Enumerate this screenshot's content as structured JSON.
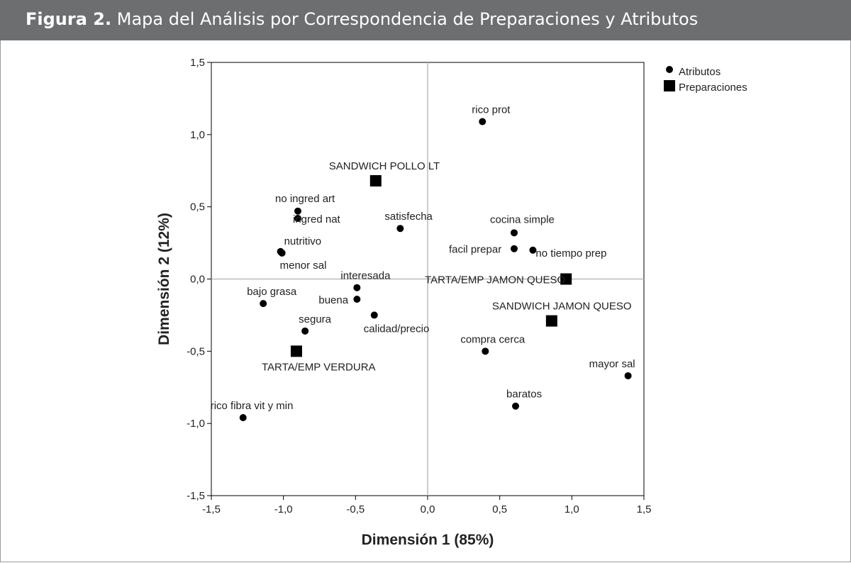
{
  "figure": {
    "label": "Figura 2.",
    "title": "Mapa del Análisis por Correspondencia de Preparaciones y Atributos"
  },
  "colors": {
    "banner": "#6d6e70",
    "marker": "#000000",
    "refline": "#b0b0b0"
  },
  "chart_data": {
    "type": "scatter",
    "xlabel": "Dimensión 1 (85%)",
    "ylabel": "Dimensión 2 (12%)",
    "xlim": [
      -1.5,
      1.5
    ],
    "ylim": [
      -1.5,
      1.5
    ],
    "xticks": [
      -1.5,
      -1.0,
      -0.5,
      0.0,
      0.5,
      1.0,
      1.5
    ],
    "yticks": [
      -1.5,
      -1.0,
      -0.5,
      0.0,
      0.5,
      1.0,
      1.5
    ],
    "xtick_labels": [
      "-1,5",
      "-1,0",
      "-0,5",
      "0,0",
      "0,5",
      "1,0",
      "1,5"
    ],
    "ytick_labels": [
      "-1,5",
      "-1,0",
      "-0,5",
      "0,0",
      "0,5",
      "1,0",
      "1,5"
    ],
    "reference_lines": {
      "x": 0,
      "y": 0
    },
    "legend": {
      "position": "top-right",
      "entries": [
        "Atributos",
        "Preparaciones"
      ]
    },
    "series": [
      {
        "name": "Atributos",
        "marker": "circle",
        "points": [
          {
            "label": "rico prot",
            "x": 0.38,
            "y": 1.09
          },
          {
            "label": "no ingred art",
            "x": -0.9,
            "y": 0.47
          },
          {
            "label": "ingred nat",
            "x": -0.9,
            "y": 0.42
          },
          {
            "label": "satisfecha",
            "x": -0.19,
            "y": 0.35
          },
          {
            "label": "cocina simple",
            "x": 0.6,
            "y": 0.32
          },
          {
            "label": "nutritivo",
            "x": -1.02,
            "y": 0.19
          },
          {
            "label": "menor sal",
            "x": -1.01,
            "y": 0.18
          },
          {
            "label": "facil prepar",
            "x": 0.6,
            "y": 0.21
          },
          {
            "label": "no tiempo prep",
            "x": 0.73,
            "y": 0.2
          },
          {
            "label": "interesada",
            "x": -0.49,
            "y": -0.06
          },
          {
            "label": "buena",
            "x": -0.49,
            "y": -0.14
          },
          {
            "label": "bajo grasa",
            "x": -1.14,
            "y": -0.17
          },
          {
            "label": "calidad/precio",
            "x": -0.37,
            "y": -0.25
          },
          {
            "label": "segura",
            "x": -0.85,
            "y": -0.36
          },
          {
            "label": "compra cerca",
            "x": 0.4,
            "y": -0.5
          },
          {
            "label": "mayor sal",
            "x": 1.39,
            "y": -0.67
          },
          {
            "label": "baratos",
            "x": 0.61,
            "y": -0.88
          },
          {
            "label": "rico fibra vit y min",
            "x": -1.28,
            "y": -0.96
          }
        ]
      },
      {
        "name": "Preparaciones",
        "marker": "square",
        "points": [
          {
            "label": "SANDWICH POLLO LT",
            "x": -0.36,
            "y": 0.68
          },
          {
            "label": "TARTA/EMP JAMON QUESO",
            "x": 0.96,
            "y": 0.0
          },
          {
            "label": "SANDWICH JAMON QUESO",
            "x": 0.86,
            "y": -0.29
          },
          {
            "label": "TARTA/EMP VERDURA",
            "x": -0.91,
            "y": -0.5
          }
        ]
      }
    ]
  }
}
